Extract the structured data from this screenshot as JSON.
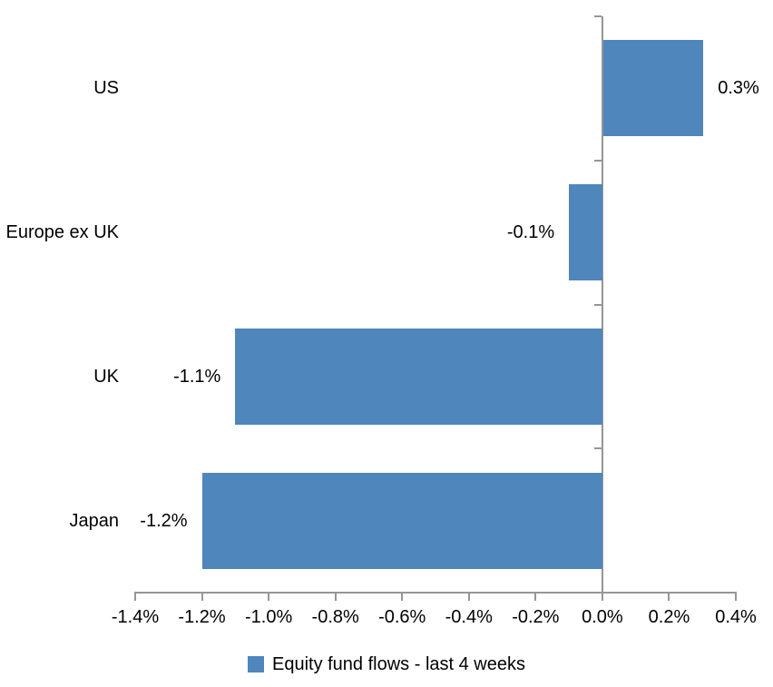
{
  "chart_data": {
    "type": "bar",
    "orientation": "horizontal",
    "title": "",
    "xlabel": "",
    "ylabel": "",
    "categories": [
      "US",
      "Europe ex UK",
      "UK",
      "Japan"
    ],
    "series": [
      {
        "name": "Equity fund flows - last 4 weeks",
        "values": [
          0.3,
          -0.1,
          -1.1,
          -1.2
        ],
        "data_labels": [
          "0.3%",
          "-0.1%",
          "-1.1%",
          "-1.2%"
        ],
        "color": "#4F86BC"
      }
    ],
    "xlim": [
      -1.4,
      0.4
    ],
    "xtick_step": 0.2,
    "xtick_labels": [
      "-1.4%",
      "-1.2%",
      "-1.0%",
      "-0.8%",
      "-0.6%",
      "-0.4%",
      "-0.2%",
      "0.0%",
      "0.2%",
      "0.4%"
    ],
    "grid": false,
    "legend_position": "bottom",
    "axis_color": "#969696",
    "text_color": "#000000",
    "background_color": "#FFFFFF"
  },
  "legend": {
    "series_label": "Equity fund flows - last 4 weeks",
    "marker": "square-icon",
    "marker_color": "#4F86BC"
  }
}
